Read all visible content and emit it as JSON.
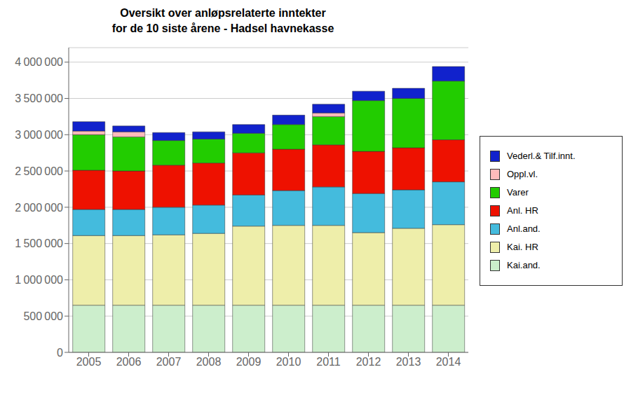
{
  "chart_data": {
    "type": "bar",
    "title": "Oversikt over anløpsrelaterte inntekter\nfor de 10 siste årene - Hadsel havnekasse",
    "categories": [
      "2005",
      "2006",
      "2007",
      "2008",
      "2009",
      "2010",
      "2011",
      "2012",
      "2013",
      "2014"
    ],
    "series": [
      {
        "name": "Kai.and.",
        "color": "#cceecc",
        "values": [
          650000,
          650000,
          650000,
          650000,
          650000,
          650000,
          650000,
          650000,
          650000,
          650000
        ]
      },
      {
        "name": "Kai. HR",
        "color": "#eeeeaa",
        "values": [
          960000,
          960000,
          970000,
          990000,
          1090000,
          1100000,
          1100000,
          1000000,
          1060000,
          1110000
        ]
      },
      {
        "name": "Anl.and.",
        "color": "#44bbdd",
        "values": [
          360000,
          360000,
          380000,
          390000,
          430000,
          480000,
          530000,
          540000,
          530000,
          590000
        ]
      },
      {
        "name": "Anl. HR",
        "color": "#ee1100",
        "values": [
          540000,
          530000,
          580000,
          580000,
          580000,
          570000,
          580000,
          580000,
          580000,
          580000
        ]
      },
      {
        "name": "Varer",
        "color": "#22cc00",
        "values": [
          490000,
          470000,
          340000,
          330000,
          270000,
          340000,
          390000,
          700000,
          680000,
          810000
        ]
      },
      {
        "name": "Oppl.vl.",
        "color": "#ffbbbb",
        "values": [
          50000,
          70000,
          0,
          0,
          0,
          0,
          50000,
          0,
          0,
          0
        ]
      },
      {
        "name": "Vederl.& Tilf.innt.",
        "color": "#1122cc",
        "values": [
          130000,
          80000,
          110000,
          100000,
          120000,
          130000,
          120000,
          130000,
          140000,
          200000
        ]
      }
    ],
    "ylim": [
      0,
      4200000
    ],
    "yticks": [
      0,
      {
        "value": 500000,
        "label": "500 000"
      },
      {
        "value": 1000000,
        "label": "1 000 000"
      },
      {
        "value": 1500000,
        "label": "1 500 000"
      },
      {
        "value": 2000000,
        "label": "2 000 000"
      },
      {
        "value": 2500000,
        "label": "2 500 000"
      },
      {
        "value": 3000000,
        "label": "3 000 000"
      },
      {
        "value": 3500000,
        "label": "3 500 000"
      },
      {
        "value": 4000000,
        "label": "4 000 000"
      }
    ],
    "grid": true,
    "stacked": true,
    "legend": "right"
  }
}
